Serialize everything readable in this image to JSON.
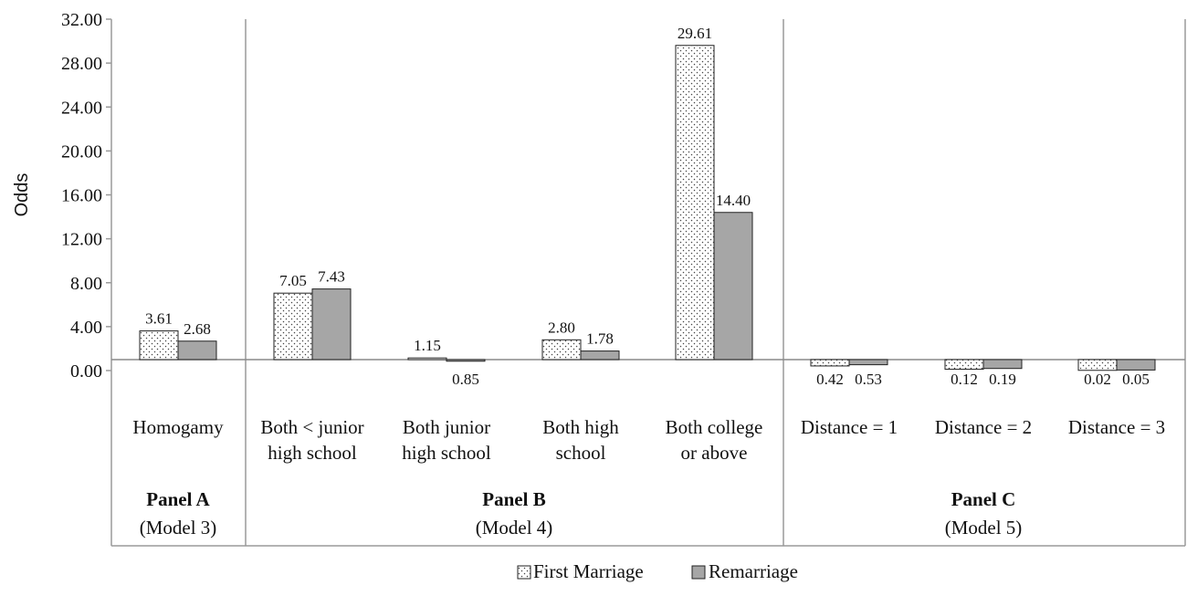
{
  "chart_data": {
    "type": "bar",
    "ylabel": "Odds",
    "xlabel": "",
    "ylim": [
      0,
      32
    ],
    "baseline": 1,
    "yticks": [
      "0.00",
      "4.00",
      "8.00",
      "12.00",
      "16.00",
      "20.00",
      "24.00",
      "28.00",
      "32.00"
    ],
    "categories": [
      "Homogamy",
      "Both < junior high school",
      "Both junior high school",
      "Both  high school",
      "Both college or above",
      "Distance = 1",
      "Distance = 2",
      "Distance = 3"
    ],
    "category_lines": [
      [
        "Homogamy"
      ],
      [
        "Both < junior",
        "high school"
      ],
      [
        "Both junior",
        "high school"
      ],
      [
        "Both  high",
        "school"
      ],
      [
        "Both college",
        "or above"
      ],
      [
        "Distance = 1"
      ],
      [
        "Distance = 2"
      ],
      [
        "Distance = 3"
      ]
    ],
    "series": [
      {
        "name": "First Marriage",
        "pattern": "dotted",
        "values": [
          3.61,
          7.05,
          1.15,
          2.8,
          29.61,
          0.42,
          0.12,
          0.02
        ],
        "labels": [
          "3.61",
          "7.05",
          "1.15",
          "2.80",
          "29.61",
          "0.42",
          "0.12",
          "0.02"
        ]
      },
      {
        "name": "Remarriage",
        "pattern": "solid",
        "color": "#a6a6a6",
        "values": [
          2.68,
          7.43,
          0.85,
          1.78,
          14.4,
          0.53,
          0.19,
          0.05
        ],
        "labels": [
          "2.68",
          "7.43",
          "0.85",
          "1.78",
          "14.40",
          "0.53",
          "0.19",
          "0.05"
        ]
      }
    ],
    "panels": [
      {
        "title": "Panel A",
        "model": "(Model 3)",
        "categories": [
          0,
          0
        ]
      },
      {
        "title": "Panel B",
        "model": "(Model 4)",
        "categories": [
          1,
          4
        ]
      },
      {
        "title": "Panel C",
        "model": "(Model 5)",
        "categories": [
          5,
          7
        ]
      }
    ],
    "legend_position": "bottom-center",
    "grid": false
  }
}
